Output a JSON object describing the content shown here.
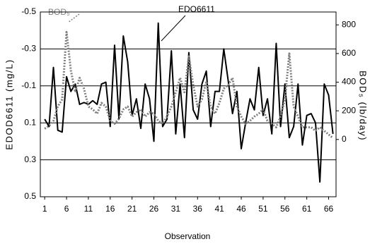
{
  "chart_data": {
    "type": "line",
    "x_label": "Observation",
    "y_label": "EDOD6611 (mg/L)",
    "y2_label": "BOD₅ (lb/day)",
    "annotations": [
      "EDO6611",
      "BOD₅"
    ],
    "x": [
      1,
      2,
      3,
      4,
      5,
      6,
      7,
      8,
      9,
      10,
      11,
      12,
      13,
      14,
      15,
      16,
      17,
      18,
      19,
      20,
      21,
      22,
      23,
      24,
      25,
      26,
      27,
      28,
      29,
      30,
      31,
      32,
      33,
      34,
      35,
      36,
      37,
      38,
      39,
      40,
      41,
      42,
      43,
      44,
      45,
      46,
      47,
      48,
      49,
      50,
      51,
      52,
      53,
      54,
      55,
      56,
      57,
      58,
      59,
      60,
      61,
      62,
      63,
      64,
      65,
      66,
      67
    ],
    "series": [
      {
        "name": "EDO6611",
        "color": "#000000",
        "axis": "y",
        "dashed": false,
        "values": [
          0.08,
          0.12,
          -0.2,
          0.14,
          0.15,
          -0.15,
          -0.07,
          -0.11,
          0,
          -0.01,
          0,
          -0.02,
          0,
          -0.11,
          -0.12,
          0.12,
          -0.32,
          0.08,
          -0.37,
          -0.23,
          0.06,
          -0.03,
          0.13,
          -0.11,
          -0.03,
          0.2,
          -0.44,
          0.12,
          0.08,
          -0.29,
          0.16,
          -0.11,
          0.18,
          -0.28,
          0.03,
          0.08,
          -0.11,
          -0.18,
          0.12,
          -0.07,
          -0.07,
          -0.3,
          -0.13,
          0.05,
          -0.07,
          0.24,
          0.1,
          -0.03,
          0.03,
          -0.2,
          0.06,
          -0.03,
          0.16,
          -0.33,
          0.12,
          -0.11,
          0.18,
          0.12,
          -0.11,
          0.22,
          0.06,
          0.05,
          0.1,
          0.42,
          -0.11,
          -0.05,
          0.16
        ]
      },
      {
        "name": "BOD₅",
        "color": "#808080",
        "axis": "y2",
        "dashed": true,
        "values": [
          75,
          95,
          130,
          230,
          280,
          750,
          480,
          330,
          430,
          355,
          230,
          210,
          180,
          255,
          230,
          130,
          110,
          145,
          210,
          230,
          160,
          190,
          210,
          160,
          190,
          180,
          130,
          110,
          160,
          230,
          330,
          430,
          330,
          580,
          380,
          230,
          280,
          405,
          230,
          180,
          255,
          355,
          380,
          430,
          230,
          160,
          110,
          130,
          160,
          180,
          210,
          130,
          110,
          85,
          160,
          280,
          600,
          230,
          160,
          85,
          85,
          85,
          60,
          85,
          60,
          35,
          10
        ]
      }
    ],
    "xlim": [
      0,
      67.7
    ],
    "xticks": [
      1,
      6,
      11,
      16,
      21,
      26,
      31,
      36,
      41,
      46,
      51,
      56,
      61,
      66
    ],
    "ylim": [
      -0.5,
      0.5
    ],
    "yticks": [
      -0.5,
      -0.3,
      -0.1,
      0.1,
      0.3,
      0.5
    ],
    "y_inverted": true,
    "y2lim": [
      -400,
      890
    ],
    "y2ticks": [
      0,
      200,
      400,
      600,
      800
    ],
    "grid": true
  }
}
